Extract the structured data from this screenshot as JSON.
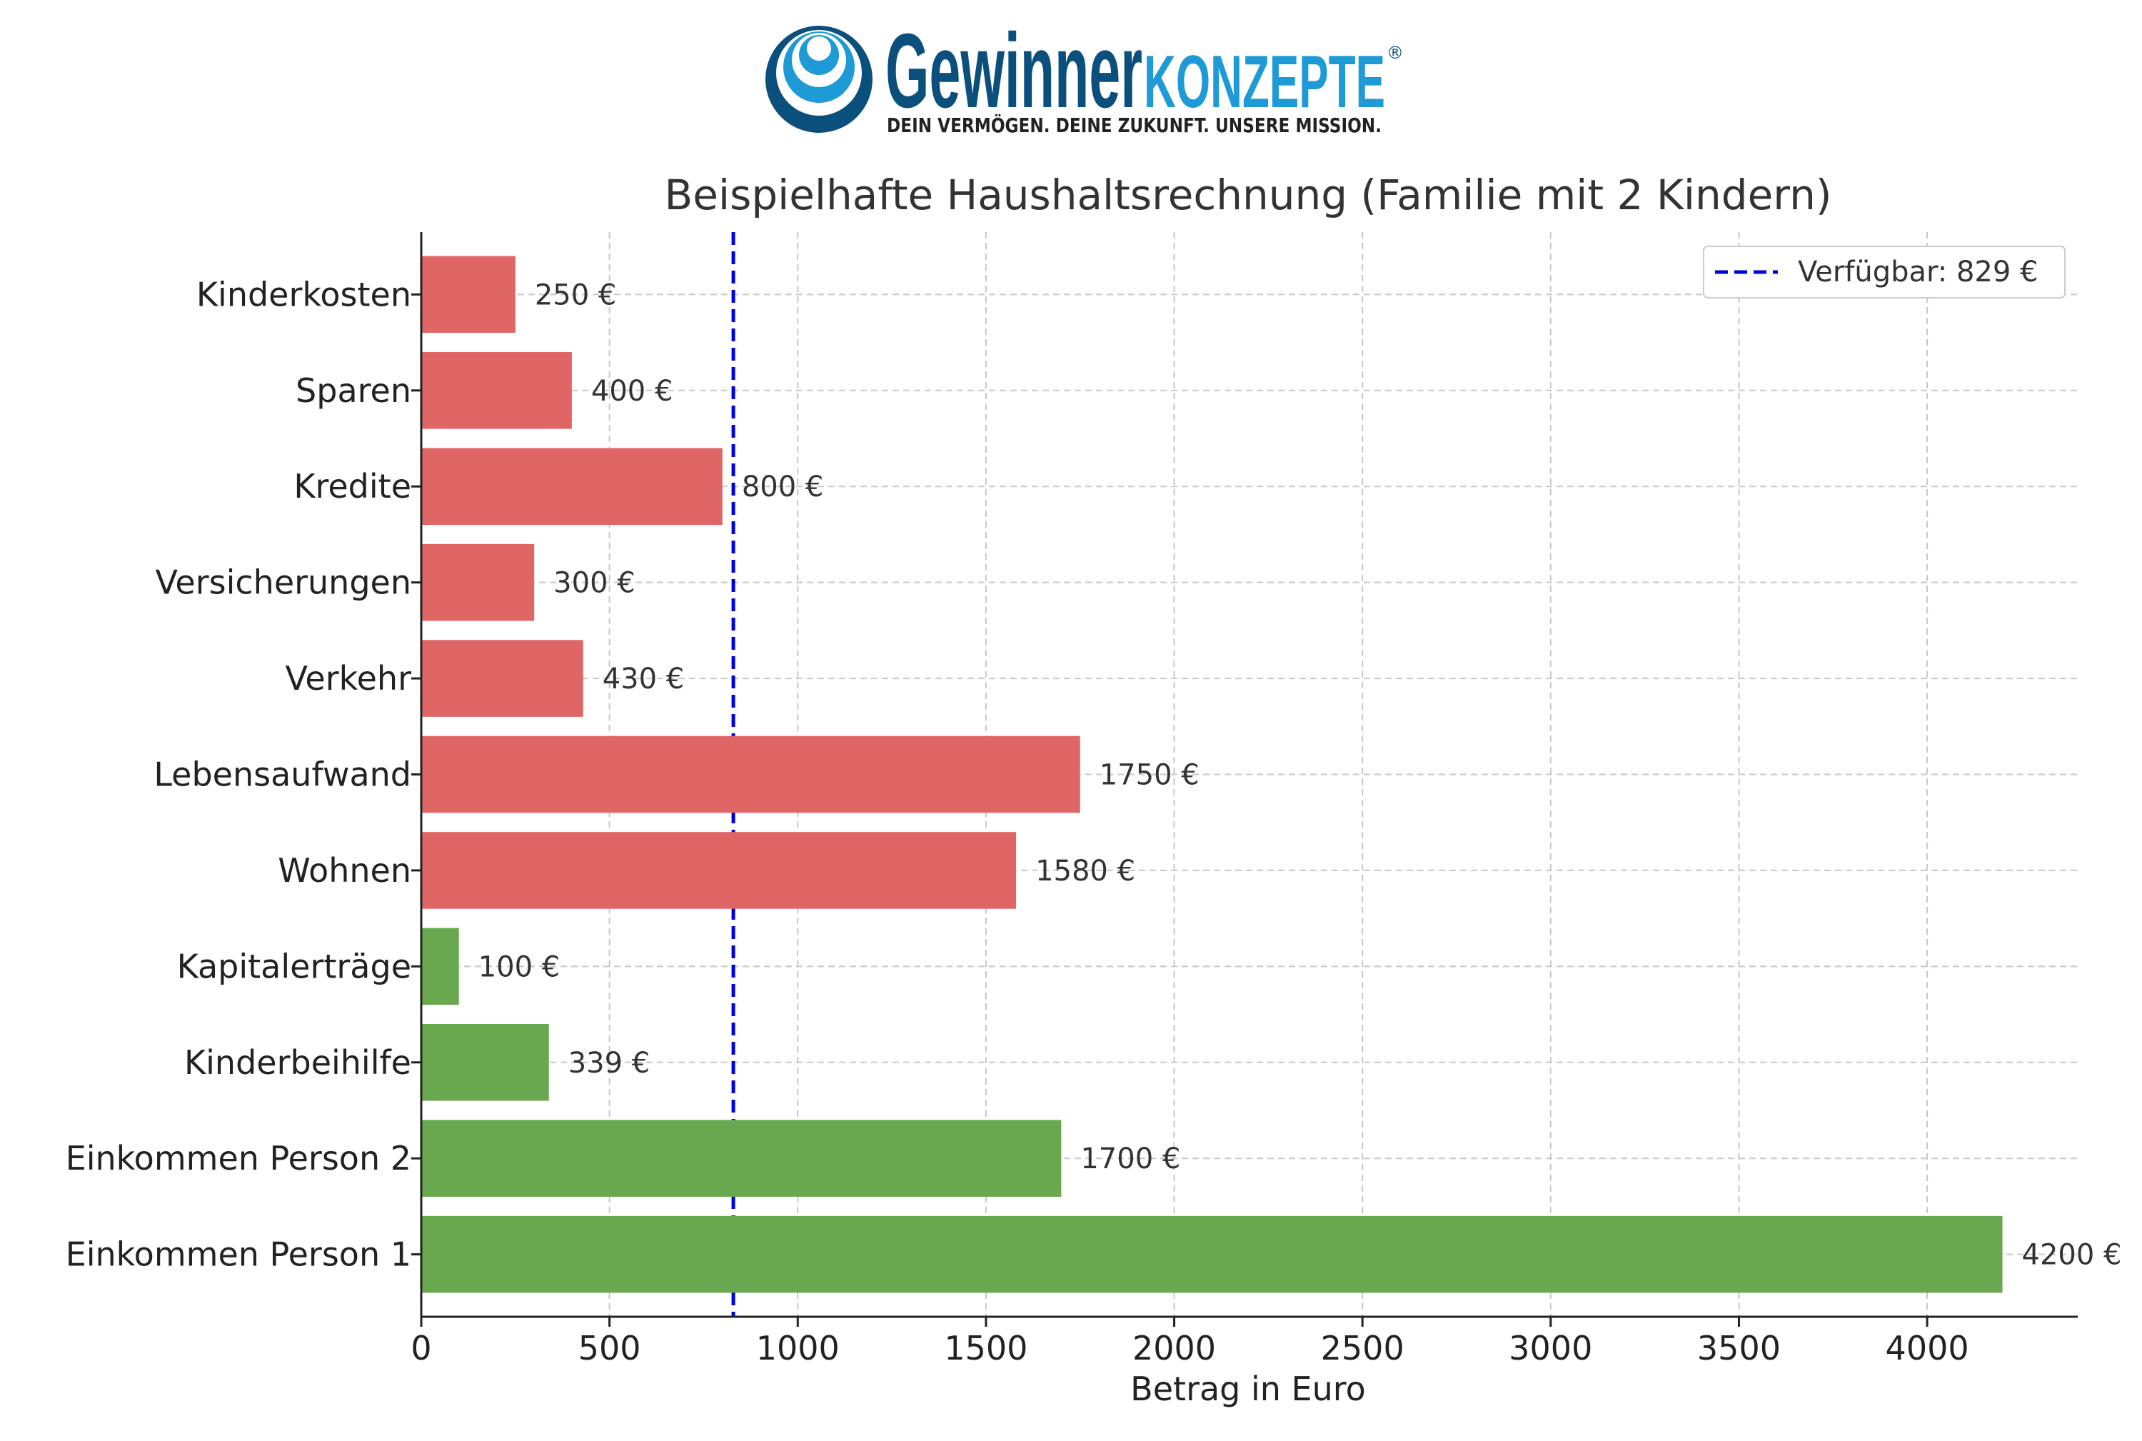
{
  "logo": {
    "word_part1": "Gewinner",
    "word_part2": "KONZEPTE",
    "registered": "®",
    "tagline": "DEIN VERMÖGEN. DEINE ZUKUNFT. UNSERE MISSION.",
    "color_dark": "#0b4f7c",
    "color_light": "#1e9ad6"
  },
  "chart_data": {
    "type": "bar",
    "orientation": "horizontal",
    "title": "Beispielhafte Haushaltsrechnung (Familie mit 2 Kindern)",
    "xlabel": "Betrag in Euro",
    "ylabel": "",
    "xlim": [
      0,
      4400
    ],
    "xticks": [
      0,
      500,
      1000,
      1500,
      2000,
      2500,
      3000,
      3500,
      4000
    ],
    "grid": true,
    "categories": [
      "Einkommen Person 1",
      "Einkommen Person 2",
      "Kinderbeihilfe",
      "Kapitalerträge",
      "Wohnen",
      "Lebensaufwand",
      "Verkehr",
      "Versicherungen",
      "Kredite",
      "Sparen",
      "Kinderkosten"
    ],
    "values": [
      4200,
      1700,
      339,
      100,
      1580,
      1750,
      430,
      300,
      800,
      400,
      250
    ],
    "value_labels": [
      "4200 €",
      "1700 €",
      "339 €",
      "100 €",
      "1580 €",
      "1750 €",
      "430 €",
      "300 €",
      "800 €",
      "400 €",
      "250 €"
    ],
    "bar_colors": [
      "#6aa84f",
      "#6aa84f",
      "#6aa84f",
      "#6aa84f",
      "#e06666",
      "#e06666",
      "#e06666",
      "#e06666",
      "#e06666",
      "#e06666",
      "#e06666"
    ],
    "reference_line": {
      "value": 829,
      "label": "Verfügbar: 829 €",
      "color": "#0000dd",
      "style": "dashed"
    },
    "legend_position": "top-right"
  }
}
